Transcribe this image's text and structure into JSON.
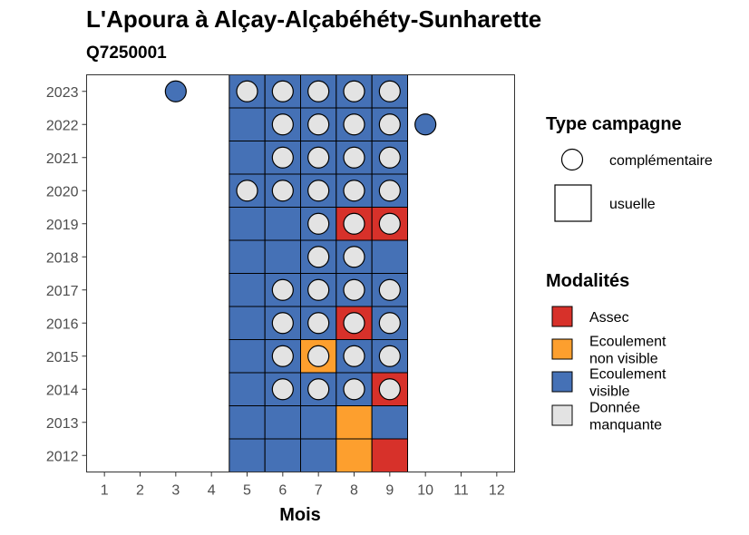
{
  "chart_data": {
    "type": "heatmap",
    "title": "L'Apoura à Alçay-Alçabéhéty-Sunharette",
    "subtitle": "Q7250001",
    "xlabel": "Mois",
    "ylabel": "",
    "x_ticks": [
      "1",
      "2",
      "3",
      "4",
      "5",
      "6",
      "7",
      "8",
      "9",
      "10",
      "11",
      "12"
    ],
    "y_ticks": [
      "2012",
      "2013",
      "2014",
      "2015",
      "2016",
      "2017",
      "2018",
      "2019",
      "2020",
      "2021",
      "2022",
      "2023"
    ],
    "xlim": [
      0.5,
      12.5
    ],
    "ylim": [
      2011.5,
      2023.5
    ],
    "grid": false,
    "legend_position": "right",
    "colors": {
      "Assec": "#d7312a",
      "Ecoulement non visible": "#fd9f2e",
      "Ecoulement visible": "#4571b6",
      "Donnée manquante": "#e3e3e3"
    },
    "legend_shape": {
      "title": "Type campagne",
      "items": [
        {
          "label": "complémentaire",
          "shape": "circle"
        },
        {
          "label": "usuelle",
          "shape": "square"
        }
      ]
    },
    "legend_fill": {
      "title": "Modalités",
      "items": [
        {
          "key": "Assec",
          "lines": [
            "Assec"
          ]
        },
        {
          "key": "Ecoulement non visible",
          "lines": [
            "Ecoulement",
            "non visible"
          ]
        },
        {
          "key": "Ecoulement visible",
          "lines": [
            "Ecoulement",
            "visible"
          ]
        },
        {
          "key": "Donnée manquante",
          "lines": [
            "Donnée",
            "manquante"
          ]
        }
      ]
    },
    "tiles": [
      {
        "year": 2012,
        "month": 5,
        "value": "Ecoulement visible"
      },
      {
        "year": 2012,
        "month": 6,
        "value": "Ecoulement visible"
      },
      {
        "year": 2012,
        "month": 7,
        "value": "Ecoulement visible"
      },
      {
        "year": 2012,
        "month": 8,
        "value": "Ecoulement non visible"
      },
      {
        "year": 2012,
        "month": 9,
        "value": "Assec"
      },
      {
        "year": 2013,
        "month": 5,
        "value": "Ecoulement visible"
      },
      {
        "year": 2013,
        "month": 6,
        "value": "Ecoulement visible"
      },
      {
        "year": 2013,
        "month": 7,
        "value": "Ecoulement visible"
      },
      {
        "year": 2013,
        "month": 8,
        "value": "Ecoulement non visible"
      },
      {
        "year": 2013,
        "month": 9,
        "value": "Ecoulement visible"
      },
      {
        "year": 2014,
        "month": 5,
        "value": "Ecoulement visible"
      },
      {
        "year": 2014,
        "month": 6,
        "value": "Ecoulement visible"
      },
      {
        "year": 2014,
        "month": 7,
        "value": "Ecoulement visible"
      },
      {
        "year": 2014,
        "month": 8,
        "value": "Ecoulement visible"
      },
      {
        "year": 2014,
        "month": 9,
        "value": "Assec"
      },
      {
        "year": 2015,
        "month": 5,
        "value": "Ecoulement visible"
      },
      {
        "year": 2015,
        "month": 6,
        "value": "Ecoulement visible"
      },
      {
        "year": 2015,
        "month": 7,
        "value": "Ecoulement non visible"
      },
      {
        "year": 2015,
        "month": 8,
        "value": "Ecoulement visible"
      },
      {
        "year": 2015,
        "month": 9,
        "value": "Ecoulement visible"
      },
      {
        "year": 2016,
        "month": 5,
        "value": "Ecoulement visible"
      },
      {
        "year": 2016,
        "month": 6,
        "value": "Ecoulement visible"
      },
      {
        "year": 2016,
        "month": 7,
        "value": "Ecoulement visible"
      },
      {
        "year": 2016,
        "month": 8,
        "value": "Assec"
      },
      {
        "year": 2016,
        "month": 9,
        "value": "Ecoulement visible"
      },
      {
        "year": 2017,
        "month": 5,
        "value": "Ecoulement visible"
      },
      {
        "year": 2017,
        "month": 6,
        "value": "Ecoulement visible"
      },
      {
        "year": 2017,
        "month": 7,
        "value": "Ecoulement visible"
      },
      {
        "year": 2017,
        "month": 8,
        "value": "Ecoulement visible"
      },
      {
        "year": 2017,
        "month": 9,
        "value": "Ecoulement visible"
      },
      {
        "year": 2018,
        "month": 5,
        "value": "Ecoulement visible"
      },
      {
        "year": 2018,
        "month": 6,
        "value": "Ecoulement visible"
      },
      {
        "year": 2018,
        "month": 7,
        "value": "Ecoulement visible"
      },
      {
        "year": 2018,
        "month": 8,
        "value": "Ecoulement visible"
      },
      {
        "year": 2018,
        "month": 9,
        "value": "Ecoulement visible"
      },
      {
        "year": 2019,
        "month": 5,
        "value": "Ecoulement visible"
      },
      {
        "year": 2019,
        "month": 6,
        "value": "Ecoulement visible"
      },
      {
        "year": 2019,
        "month": 7,
        "value": "Ecoulement visible"
      },
      {
        "year": 2019,
        "month": 8,
        "value": "Assec"
      },
      {
        "year": 2019,
        "month": 9,
        "value": "Assec"
      },
      {
        "year": 2020,
        "month": 5,
        "value": "Ecoulement visible"
      },
      {
        "year": 2020,
        "month": 6,
        "value": "Ecoulement visible"
      },
      {
        "year": 2020,
        "month": 7,
        "value": "Ecoulement visible"
      },
      {
        "year": 2020,
        "month": 8,
        "value": "Ecoulement visible"
      },
      {
        "year": 2020,
        "month": 9,
        "value": "Ecoulement visible"
      },
      {
        "year": 2021,
        "month": 5,
        "value": "Ecoulement visible"
      },
      {
        "year": 2021,
        "month": 6,
        "value": "Ecoulement visible"
      },
      {
        "year": 2021,
        "month": 7,
        "value": "Ecoulement visible"
      },
      {
        "year": 2021,
        "month": 8,
        "value": "Ecoulement visible"
      },
      {
        "year": 2021,
        "month": 9,
        "value": "Ecoulement visible"
      },
      {
        "year": 2022,
        "month": 5,
        "value": "Ecoulement visible"
      },
      {
        "year": 2022,
        "month": 6,
        "value": "Ecoulement visible"
      },
      {
        "year": 2022,
        "month": 7,
        "value": "Ecoulement visible"
      },
      {
        "year": 2022,
        "month": 8,
        "value": "Ecoulement visible"
      },
      {
        "year": 2022,
        "month": 9,
        "value": "Ecoulement visible"
      },
      {
        "year": 2023,
        "month": 5,
        "value": "Ecoulement visible"
      },
      {
        "year": 2023,
        "month": 6,
        "value": "Ecoulement visible"
      },
      {
        "year": 2023,
        "month": 7,
        "value": "Ecoulement visible"
      },
      {
        "year": 2023,
        "month": 8,
        "value": "Ecoulement visible"
      },
      {
        "year": 2023,
        "month": 9,
        "value": "Ecoulement visible"
      }
    ],
    "points": [
      {
        "year": 2014,
        "month": 6,
        "value": "Donnée manquante"
      },
      {
        "year": 2014,
        "month": 7,
        "value": "Donnée manquante"
      },
      {
        "year": 2014,
        "month": 8,
        "value": "Donnée manquante"
      },
      {
        "year": 2014,
        "month": 9,
        "value": "Donnée manquante"
      },
      {
        "year": 2015,
        "month": 6,
        "value": "Donnée manquante"
      },
      {
        "year": 2015,
        "month": 7,
        "value": "Donnée manquante"
      },
      {
        "year": 2015,
        "month": 8,
        "value": "Donnée manquante"
      },
      {
        "year": 2015,
        "month": 9,
        "value": "Donnée manquante"
      },
      {
        "year": 2016,
        "month": 6,
        "value": "Donnée manquante"
      },
      {
        "year": 2016,
        "month": 7,
        "value": "Donnée manquante"
      },
      {
        "year": 2016,
        "month": 8,
        "value": "Donnée manquante"
      },
      {
        "year": 2016,
        "month": 9,
        "value": "Donnée manquante"
      },
      {
        "year": 2017,
        "month": 6,
        "value": "Donnée manquante"
      },
      {
        "year": 2017,
        "month": 7,
        "value": "Donnée manquante"
      },
      {
        "year": 2017,
        "month": 8,
        "value": "Donnée manquante"
      },
      {
        "year": 2017,
        "month": 9,
        "value": "Donnée manquante"
      },
      {
        "year": 2018,
        "month": 7,
        "value": "Donnée manquante"
      },
      {
        "year": 2018,
        "month": 8,
        "value": "Donnée manquante"
      },
      {
        "year": 2019,
        "month": 7,
        "value": "Donnée manquante"
      },
      {
        "year": 2019,
        "month": 8,
        "value": "Donnée manquante"
      },
      {
        "year": 2019,
        "month": 9,
        "value": "Donnée manquante"
      },
      {
        "year": 2020,
        "month": 5,
        "value": "Donnée manquante"
      },
      {
        "year": 2020,
        "month": 6,
        "value": "Donnée manquante"
      },
      {
        "year": 2020,
        "month": 7,
        "value": "Donnée manquante"
      },
      {
        "year": 2020,
        "month": 8,
        "value": "Donnée manquante"
      },
      {
        "year": 2020,
        "month": 9,
        "value": "Donnée manquante"
      },
      {
        "year": 2021,
        "month": 6,
        "value": "Donnée manquante"
      },
      {
        "year": 2021,
        "month": 7,
        "value": "Donnée manquante"
      },
      {
        "year": 2021,
        "month": 8,
        "value": "Donnée manquante"
      },
      {
        "year": 2021,
        "month": 9,
        "value": "Donnée manquante"
      },
      {
        "year": 2022,
        "month": 6,
        "value": "Donnée manquante"
      },
      {
        "year": 2022,
        "month": 7,
        "value": "Donnée manquante"
      },
      {
        "year": 2022,
        "month": 8,
        "value": "Donnée manquante"
      },
      {
        "year": 2022,
        "month": 9,
        "value": "Donnée manquante"
      },
      {
        "year": 2022,
        "month": 10,
        "value": "Ecoulement visible"
      },
      {
        "year": 2023,
        "month": 3,
        "value": "Ecoulement visible"
      },
      {
        "year": 2023,
        "month": 5,
        "value": "Donnée manquante"
      },
      {
        "year": 2023,
        "month": 6,
        "value": "Donnée manquante"
      },
      {
        "year": 2023,
        "month": 7,
        "value": "Donnée manquante"
      },
      {
        "year": 2023,
        "month": 8,
        "value": "Donnée manquante"
      },
      {
        "year": 2023,
        "month": 9,
        "value": "Donnée manquante"
      }
    ]
  }
}
